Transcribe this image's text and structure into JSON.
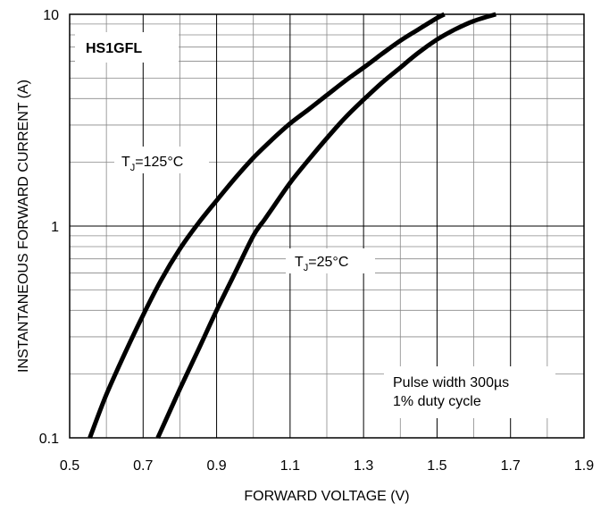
{
  "chart_data": {
    "type": "line",
    "x_scale": "linear",
    "y_scale": "log",
    "xlabel": "FORWARD VOLTAGE (V)",
    "ylabel": "INSTANTANEOUS FORWARD CURRENT (A)",
    "xlim": [
      0.5,
      1.9
    ],
    "ylim": [
      0.1,
      10
    ],
    "x_ticks": [
      "0.5",
      "0.7",
      "0.9",
      "1.1",
      "1.3",
      "1.5",
      "1.7",
      "1.9"
    ],
    "y_ticks": [
      "0.1",
      "1",
      "10"
    ],
    "grid": true,
    "series": [
      {
        "name": "TJ=125°C",
        "label_main": "T",
        "label_sub": "J",
        "label_rest": "=125°C",
        "x": [
          0.555,
          0.6,
          0.65,
          0.7,
          0.75,
          0.8,
          0.85,
          0.9,
          0.95,
          1.0,
          1.05,
          1.1,
          1.15,
          1.2,
          1.25,
          1.3,
          1.35,
          1.4,
          1.45,
          1.5,
          1.52
        ],
        "y": [
          0.1,
          0.16,
          0.25,
          0.38,
          0.56,
          0.78,
          1.03,
          1.32,
          1.68,
          2.1,
          2.55,
          3.05,
          3.55,
          4.15,
          4.85,
          5.6,
          6.5,
          7.5,
          8.5,
          9.6,
          10
        ]
      },
      {
        "name": "TJ=25°C",
        "label_main": "T",
        "label_sub": "J",
        "label_rest": "=25°C",
        "x": [
          0.74,
          0.8,
          0.85,
          0.9,
          0.95,
          1.0,
          1.03,
          1.05,
          1.1,
          1.15,
          1.2,
          1.25,
          1.3,
          1.35,
          1.4,
          1.45,
          1.5,
          1.55,
          1.6,
          1.66
        ],
        "y": [
          0.1,
          0.17,
          0.26,
          0.4,
          0.6,
          0.9,
          1.07,
          1.2,
          1.6,
          2.05,
          2.6,
          3.25,
          3.95,
          4.75,
          5.6,
          6.6,
          7.6,
          8.5,
          9.3,
          10
        ]
      }
    ],
    "annotations": {
      "box_label": "HS1GFL",
      "note_line1": "Pulse width 300µs",
      "note_line2": "1% duty cycle"
    }
  }
}
